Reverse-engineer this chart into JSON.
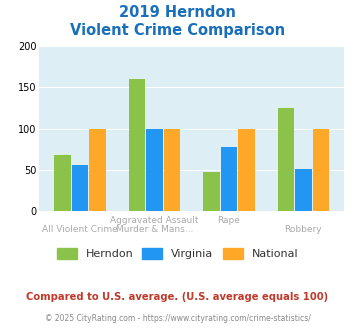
{
  "title_line1": "2019 Herndon",
  "title_line2": "Violent Crime Comparison",
  "cat_labels_top": [
    "",
    "Aggravated Assault",
    "Rape",
    ""
  ],
  "cat_labels_bottom": [
    "All Violent Crime",
    "Murder & Mans...",
    "",
    "Robbery"
  ],
  "herndon": [
    68,
    160,
    48,
    125
  ],
  "virginia": [
    56,
    100,
    78,
    51
  ],
  "national": [
    100,
    100,
    100,
    100
  ],
  "color_herndon": "#8bc34a",
  "color_virginia": "#2196f3",
  "color_national": "#ffa726",
  "ylim": [
    0,
    200
  ],
  "yticks": [
    0,
    50,
    100,
    150,
    200
  ],
  "bg_color": "#ddeef5",
  "title_color": "#1a6fba",
  "label_color": "#aaaaaa",
  "legend_text_color": "#333333",
  "footer_text": "Compared to U.S. average. (U.S. average equals 100)",
  "footer_color": "#c0392b",
  "copyright_text": "© 2025 CityRating.com - https://www.cityrating.com/crime-statistics/",
  "copyright_color": "#888888",
  "legend_labels": [
    "Herndon",
    "Virginia",
    "National"
  ]
}
